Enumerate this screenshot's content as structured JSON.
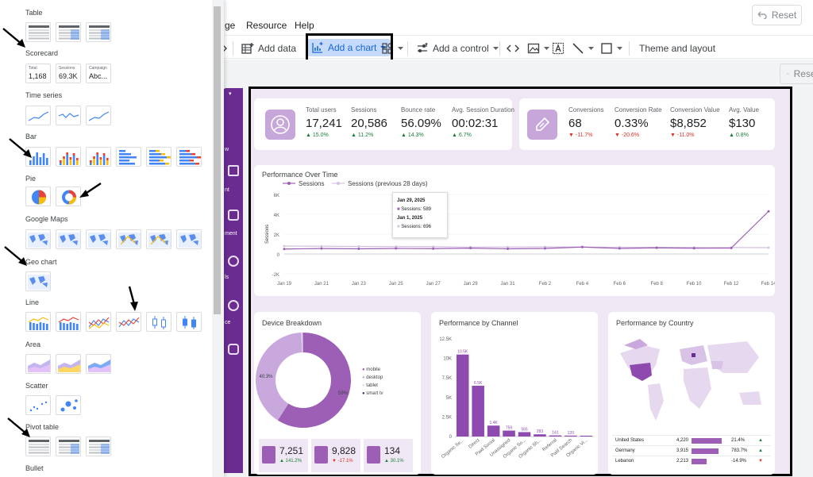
{
  "menu": {
    "items": [
      "ge",
      "Resource",
      "Help"
    ],
    "reset_label": "Reset"
  },
  "toolbar": {
    "add_data": "Add data",
    "add_chart": "Add a chart",
    "add_control": "Add a control",
    "theme_layout": "Theme and layout",
    "reset_label": "Reset"
  },
  "panel": {
    "sections": [
      "Table",
      "Scorecard",
      "Time series",
      "Bar",
      "Pie",
      "Google Maps",
      "Geo chart",
      "Line",
      "Area",
      "Scatter",
      "Pivot table",
      "Bullet"
    ],
    "scorecard_thumbs": [
      {
        "label": "Total",
        "value": "1,168"
      },
      {
        "label": "Sessions",
        "value": "69.3K"
      },
      {
        "label": "Campaign",
        "value": "Abc..."
      }
    ]
  },
  "sidebar": {
    "labels": [
      "w",
      "nt",
      "ment",
      "ls",
      "ce"
    ]
  },
  "kpis_left": [
    {
      "label": "Total users",
      "value": "17,241",
      "delta": "15.0%",
      "dir": "up"
    },
    {
      "label": "Sessions",
      "value": "20,586",
      "delta": "11.2%",
      "dir": "up"
    },
    {
      "label": "Bounce rate",
      "value": "56.09%",
      "delta": "14.3%",
      "dir": "up"
    },
    {
      "label": "Avg. Session Duration",
      "value": "00:02:31",
      "delta": "6.7%",
      "dir": "up"
    }
  ],
  "kpis_right": [
    {
      "label": "Conversions",
      "value": "68",
      "delta": "-11.7%",
      "dir": "down"
    },
    {
      "label": "Conversion Rate",
      "value": "0.33%",
      "delta": "-20.6%",
      "dir": "down"
    },
    {
      "label": "Conversion Value",
      "value": "$8,852",
      "delta": "-11.0%",
      "dir": "down"
    },
    {
      "label": "Avg. Value",
      "value": "$130",
      "delta": "0.8%",
      "dir": "up"
    }
  ],
  "performance": {
    "title": "Performance Over Time",
    "legend": [
      "Sessions",
      "Sessions (previous 28 days)"
    ],
    "tooltip": {
      "date1": "Jan 29, 2025",
      "line1": "Sessions: 589",
      "date2": "Jan 1, 2025",
      "line2": "Sessions: 696"
    }
  },
  "device": {
    "title": "Device Breakdown",
    "legend": [
      "mobile",
      "desktop",
      "tablet",
      "smart tv"
    ],
    "stats": [
      {
        "value": "7,251",
        "delta": "141.2%",
        "dir": "up"
      },
      {
        "value": "9,828",
        "delta": "-17.1%",
        "dir": "down"
      },
      {
        "value": "134",
        "delta": "30.1%",
        "dir": "up"
      }
    ]
  },
  "channel": {
    "title": "Performance by Channel"
  },
  "country": {
    "title": "Performance by Country",
    "rows": [
      {
        "name": "United States",
        "value": "4,220",
        "pct": "21.4%",
        "dir": "up",
        "bar": 0.95
      },
      {
        "name": "Germany",
        "value": "3,915",
        "pct": "783.7%",
        "dir": "up",
        "bar": 0.85
      },
      {
        "name": "Lebanon",
        "value": "2,213",
        "pct": "-14.9%",
        "dir": "down",
        "bar": 0.48
      }
    ]
  },
  "chart_data": [
    {
      "type": "line",
      "title": "Performance Over Time",
      "x": [
        "Jan 19",
        "Jan 21",
        "Jan 23",
        "Jan 25",
        "Jan 27",
        "Jan 29",
        "Jan 31",
        "Feb 2",
        "Feb 4",
        "Feb 6",
        "Feb 8",
        "Feb 10",
        "Feb 12",
        "Feb 14"
      ],
      "ylabel": "Sessions",
      "yticks": [
        "6K",
        "4K",
        "2K",
        "0",
        "-2K"
      ],
      "ylim": [
        -2000,
        6000
      ],
      "series": [
        {
          "name": "Sessions",
          "values": [
            500,
            550,
            520,
            560,
            540,
            589,
            520,
            560,
            700,
            560,
            620,
            580,
            600,
            4300
          ]
        },
        {
          "name": "Sessions (previous 28 days)",
          "values": [
            800,
            780,
            760,
            750,
            740,
            696,
            700,
            720,
            690,
            680,
            670,
            660,
            650,
            640
          ]
        }
      ]
    },
    {
      "type": "pie",
      "title": "Device Breakdown",
      "categories": [
        "mobile",
        "desktop",
        "tablet",
        "smart tv"
      ],
      "values": [
        59,
        40.3,
        0.6,
        0.1
      ],
      "labels": [
        "59%",
        "40.3%"
      ]
    },
    {
      "type": "bar",
      "title": "Performance by Channel",
      "categories": [
        "Organic Se...",
        "Direct",
        "Paid Social",
        "Unassigned",
        "Organic So...",
        "Organic Sh...",
        "Referral",
        "Paid Search",
        "Organic Vi..."
      ],
      "values": [
        10500,
        6500,
        1400,
        759,
        565,
        283,
        141,
        120,
        14
      ],
      "data_labels": [
        "10.5K",
        "6.5K",
        "1.4K",
        "759",
        "565",
        "283",
        "141",
        "120",
        ""
      ],
      "yticks": [
        "12.5K",
        "10K",
        "7.5K",
        "5K",
        "2.5K",
        "0"
      ],
      "ylim": [
        0,
        12500
      ]
    }
  ]
}
